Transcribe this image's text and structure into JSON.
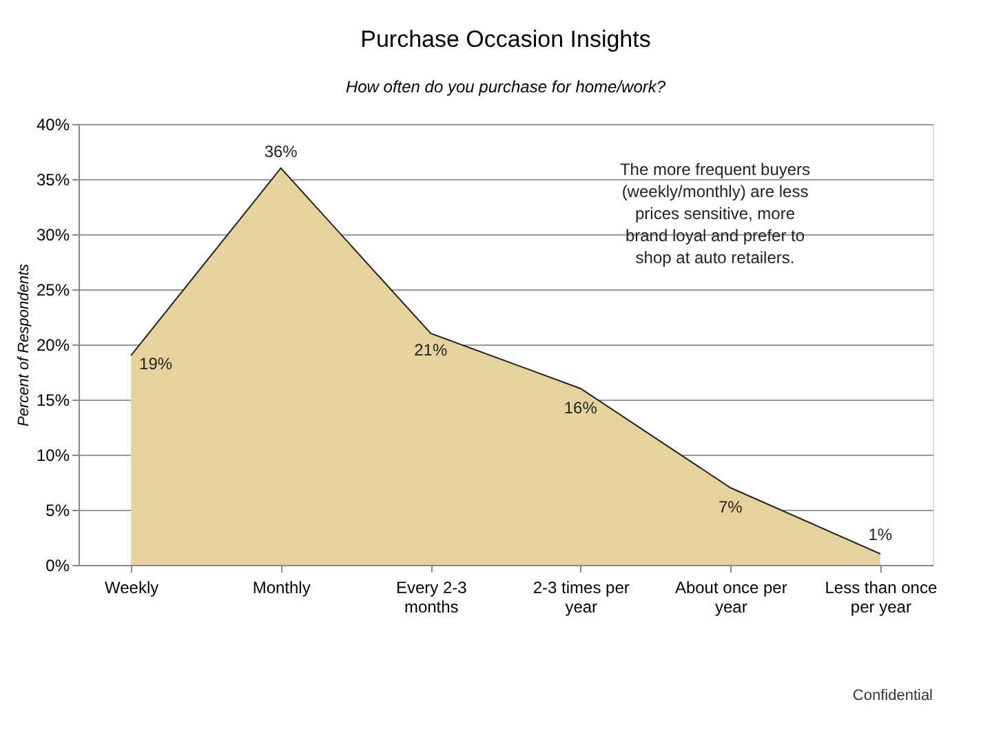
{
  "chart_data": {
    "type": "area",
    "title": "Purchase Occasion Insights",
    "subtitle": "How often do you purchase for home/work?",
    "ylabel": "Percent of Respondents",
    "categories": [
      "Weekly",
      "Monthly",
      "Every 2-3 months",
      "2-3 times per year",
      "About once per year",
      "Less than once per year"
    ],
    "series": [
      {
        "color": "#e6d29c",
        "values": [
          19,
          36,
          21,
          16,
          7,
          1
        ]
      }
    ],
    "value_labels": [
      "19%",
      "36%",
      "21%",
      "16%",
      "7%",
      "1%"
    ],
    "ylim": [
      0,
      40
    ],
    "yticks": [
      {
        "value": 0,
        "label": "0%"
      },
      {
        "value": 5,
        "label": "5%"
      },
      {
        "value": 10,
        "label": "10%"
      },
      {
        "value": 15,
        "label": "15%"
      },
      {
        "value": 20,
        "label": "20%"
      },
      {
        "value": 25,
        "label": "25%"
      },
      {
        "value": 30,
        "label": "30%"
      },
      {
        "value": 35,
        "label": "35%"
      },
      {
        "value": 40,
        "label": "40%"
      }
    ],
    "grid": "y",
    "annotations": [
      "The more frequent buyers (weekly/monthly) are less prices sensitive, more brand loyal and prefer to shop at auto retailers.",
      "Confidential"
    ]
  }
}
